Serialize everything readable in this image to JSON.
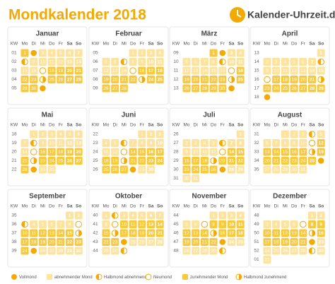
{
  "header": {
    "title": "Mondkalender 2018",
    "logo": "Kalender-Uhrzeit.de"
  },
  "weekday_header": [
    "KW",
    "Mo",
    "Di",
    "Mi",
    "Do",
    "Fr",
    "Sa",
    "So"
  ],
  "months": [
    {
      "name": "Januar",
      "weeks": [
        {
          "kw": "01",
          "days": [
            1,
            2,
            3,
            4,
            5,
            6,
            7
          ]
        },
        {
          "kw": "02",
          "days": [
            8,
            9,
            10,
            11,
            12,
            13,
            14
          ]
        },
        {
          "kw": "03",
          "days": [
            15,
            16,
            17,
            18,
            19,
            20,
            21
          ]
        },
        {
          "kw": "04",
          "days": [
            22,
            23,
            24,
            25,
            26,
            27,
            28
          ]
        },
        {
          "kw": "05",
          "days": [
            29,
            30,
            31,
            null,
            null,
            null,
            null
          ]
        }
      ],
      "full": [
        2,
        31
      ],
      "new": [
        17
      ],
      "last": [
        8
      ],
      "first": [
        24
      ]
    },
    {
      "name": "Februar",
      "weeks": [
        {
          "kw": "05",
          "days": [
            null,
            null,
            null,
            1,
            2,
            3,
            4
          ]
        },
        {
          "kw": "06",
          "days": [
            5,
            6,
            7,
            8,
            9,
            10,
            11
          ]
        },
        {
          "kw": "07",
          "days": [
            12,
            13,
            14,
            15,
            16,
            17,
            18
          ]
        },
        {
          "kw": "08",
          "days": [
            19,
            20,
            21,
            22,
            23,
            24,
            25
          ]
        },
        {
          "kw": "09",
          "days": [
            26,
            27,
            28,
            null,
            null,
            null,
            null
          ]
        }
      ],
      "full": [],
      "new": [
        15
      ],
      "last": [
        7
      ],
      "first": [
        23
      ]
    },
    {
      "name": "März",
      "weeks": [
        {
          "kw": "09",
          "days": [
            null,
            null,
            null,
            1,
            2,
            3,
            4
          ]
        },
        {
          "kw": "10",
          "days": [
            5,
            6,
            7,
            8,
            9,
            10,
            11
          ]
        },
        {
          "kw": "11",
          "days": [
            12,
            13,
            14,
            15,
            16,
            17,
            18
          ]
        },
        {
          "kw": "12",
          "days": [
            19,
            20,
            21,
            22,
            23,
            24,
            25
          ]
        },
        {
          "kw": "13",
          "days": [
            26,
            27,
            28,
            29,
            30,
            31,
            null
          ]
        }
      ],
      "full": [
        2,
        31
      ],
      "new": [
        17
      ],
      "last": [
        9
      ],
      "first": [
        24
      ]
    },
    {
      "name": "April",
      "weeks": [
        {
          "kw": "13",
          "days": [
            null,
            null,
            null,
            null,
            null,
            null,
            1
          ]
        },
        {
          "kw": "14",
          "days": [
            2,
            3,
            4,
            5,
            6,
            7,
            8
          ]
        },
        {
          "kw": "15",
          "days": [
            9,
            10,
            11,
            12,
            13,
            14,
            15
          ]
        },
        {
          "kw": "16",
          "days": [
            16,
            17,
            18,
            19,
            20,
            21,
            22
          ]
        },
        {
          "kw": "17",
          "days": [
            23,
            24,
            25,
            26,
            27,
            28,
            29
          ]
        },
        {
          "kw": "18",
          "days": [
            30,
            null,
            null,
            null,
            null,
            null,
            null
          ]
        }
      ],
      "full": [
        30
      ],
      "new": [
        16
      ],
      "last": [
        8
      ],
      "first": [
        22
      ]
    },
    {
      "name": "Mai",
      "weeks": [
        {
          "kw": "18",
          "days": [
            null,
            1,
            2,
            3,
            4,
            5,
            6
          ]
        },
        {
          "kw": "19",
          "days": [
            7,
            8,
            9,
            10,
            11,
            12,
            13
          ]
        },
        {
          "kw": "20",
          "days": [
            14,
            15,
            16,
            17,
            18,
            19,
            20
          ]
        },
        {
          "kw": "21",
          "days": [
            21,
            22,
            23,
            24,
            25,
            26,
            27
          ]
        },
        {
          "kw": "22",
          "days": [
            28,
            29,
            30,
            31,
            null,
            null,
            null
          ]
        }
      ],
      "full": [
        29
      ],
      "new": [
        15
      ],
      "last": [
        8
      ],
      "first": [
        22
      ]
    },
    {
      "name": "Juni",
      "weeks": [
        {
          "kw": "22",
          "days": [
            null,
            null,
            null,
            null,
            1,
            2,
            3
          ]
        },
        {
          "kw": "23",
          "days": [
            4,
            5,
            6,
            7,
            8,
            9,
            10
          ]
        },
        {
          "kw": "24",
          "days": [
            11,
            12,
            13,
            14,
            15,
            16,
            17
          ]
        },
        {
          "kw": "25",
          "days": [
            18,
            19,
            20,
            21,
            22,
            23,
            24
          ]
        },
        {
          "kw": "26",
          "days": [
            25,
            26,
            27,
            28,
            29,
            30,
            null
          ]
        }
      ],
      "full": [
        28
      ],
      "new": [
        13
      ],
      "last": [
        6
      ],
      "first": [
        20
      ]
    },
    {
      "name": "Juli",
      "weeks": [
        {
          "kw": "26",
          "days": [
            null,
            null,
            null,
            null,
            null,
            null,
            1
          ]
        },
        {
          "kw": "27",
          "days": [
            2,
            3,
            4,
            5,
            6,
            7,
            8
          ]
        },
        {
          "kw": "28",
          "days": [
            9,
            10,
            11,
            12,
            13,
            14,
            15
          ]
        },
        {
          "kw": "29",
          "days": [
            16,
            17,
            18,
            19,
            20,
            21,
            22
          ]
        },
        {
          "kw": "30",
          "days": [
            23,
            24,
            25,
            26,
            27,
            28,
            29
          ]
        },
        {
          "kw": "31",
          "days": [
            30,
            31,
            null,
            null,
            null,
            null,
            null
          ]
        }
      ],
      "full": [
        27
      ],
      "new": [
        13
      ],
      "last": [
        6
      ],
      "first": [
        19
      ]
    },
    {
      "name": "August",
      "weeks": [
        {
          "kw": "31",
          "days": [
            null,
            null,
            1,
            2,
            3,
            4,
            5
          ]
        },
        {
          "kw": "32",
          "days": [
            6,
            7,
            8,
            9,
            10,
            11,
            12
          ]
        },
        {
          "kw": "33",
          "days": [
            13,
            14,
            15,
            16,
            17,
            18,
            19
          ]
        },
        {
          "kw": "34",
          "days": [
            20,
            21,
            22,
            23,
            24,
            25,
            26
          ]
        },
        {
          "kw": "35",
          "days": [
            27,
            28,
            29,
            30,
            31,
            null,
            null
          ]
        }
      ],
      "full": [
        26
      ],
      "new": [
        11
      ],
      "last": [
        4
      ],
      "first": [
        18
      ]
    },
    {
      "name": "September",
      "weeks": [
        {
          "kw": "35",
          "days": [
            null,
            null,
            null,
            null,
            null,
            1,
            2
          ]
        },
        {
          "kw": "36",
          "days": [
            3,
            4,
            5,
            6,
            7,
            8,
            9
          ]
        },
        {
          "kw": "37",
          "days": [
            10,
            11,
            12,
            13,
            14,
            15,
            16
          ]
        },
        {
          "kw": "38",
          "days": [
            17,
            18,
            19,
            20,
            21,
            22,
            23
          ]
        },
        {
          "kw": "39",
          "days": [
            24,
            25,
            26,
            27,
            28,
            29,
            30
          ]
        }
      ],
      "full": [
        25
      ],
      "new": [
        9
      ],
      "last": [
        3
      ],
      "first": [
        16
      ]
    },
    {
      "name": "Oktober",
      "weeks": [
        {
          "kw": "40",
          "days": [
            1,
            2,
            3,
            4,
            5,
            6,
            7
          ]
        },
        {
          "kw": "41",
          "days": [
            8,
            9,
            10,
            11,
            12,
            13,
            14
          ]
        },
        {
          "kw": "42",
          "days": [
            15,
            16,
            17,
            18,
            19,
            20,
            21
          ]
        },
        {
          "kw": "43",
          "days": [
            22,
            23,
            24,
            25,
            26,
            27,
            28
          ]
        },
        {
          "kw": "44",
          "days": [
            29,
            30,
            31,
            null,
            null,
            null,
            null
          ]
        }
      ],
      "full": [
        24
      ],
      "new": [
        9
      ],
      "last": [
        2,
        31
      ],
      "first": [
        16
      ]
    },
    {
      "name": "November",
      "weeks": [
        {
          "kw": "44",
          "days": [
            null,
            null,
            null,
            1,
            2,
            3,
            4
          ]
        },
        {
          "kw": "45",
          "days": [
            5,
            6,
            7,
            8,
            9,
            10,
            11
          ]
        },
        {
          "kw": "46",
          "days": [
            12,
            13,
            14,
            15,
            16,
            17,
            18
          ]
        },
        {
          "kw": "47",
          "days": [
            19,
            20,
            21,
            22,
            23,
            24,
            25
          ]
        },
        {
          "kw": "48",
          "days": [
            26,
            27,
            28,
            29,
            30,
            null,
            null
          ]
        }
      ],
      "full": [
        23
      ],
      "new": [
        7
      ],
      "last": [
        30
      ],
      "first": [
        15
      ]
    },
    {
      "name": "Dezember",
      "weeks": [
        {
          "kw": "48",
          "days": [
            null,
            null,
            null,
            null,
            null,
            1,
            2
          ]
        },
        {
          "kw": "49",
          "days": [
            3,
            4,
            5,
            6,
            7,
            8,
            9
          ]
        },
        {
          "kw": "50",
          "days": [
            10,
            11,
            12,
            13,
            14,
            15,
            16
          ]
        },
        {
          "kw": "51",
          "days": [
            17,
            18,
            19,
            20,
            21,
            22,
            23
          ]
        },
        {
          "kw": "52",
          "days": [
            24,
            25,
            26,
            27,
            28,
            29,
            30
          ]
        },
        {
          "kw": "01",
          "days": [
            31,
            null,
            null,
            null,
            null,
            null,
            null
          ]
        }
      ],
      "full": [
        22
      ],
      "new": [
        7
      ],
      "last": [
        29
      ],
      "first": [
        15
      ]
    }
  ],
  "legend": [
    "Vollmond",
    "abnehmender Mond",
    "Halbmond abnehmend",
    "Neumond",
    "zunehmender Mond",
    "Halbmond zunehmend"
  ]
}
